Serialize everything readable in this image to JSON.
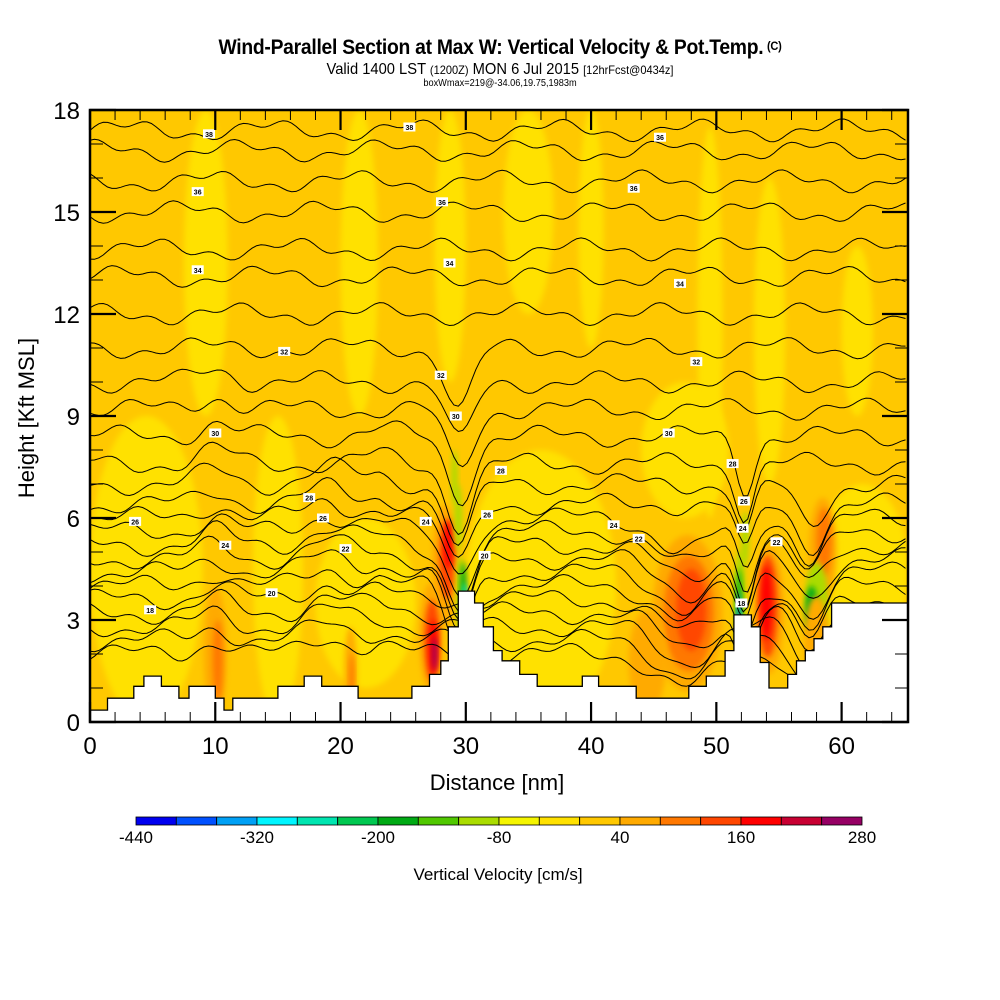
{
  "header": {
    "title": "Wind-Parallel Section at Max W: Vertical Velocity & Pot.Temp.",
    "copyright": "(C)",
    "valid_prefix": "Valid 1400 LST",
    "valid_utc": "(1200Z)",
    "valid_date": "MON 6 Jul 2015",
    "forecast": "[12hrFcst@0434z]",
    "box_info": "boxWmax=219@-34.06,19.75,1983m"
  },
  "chart_data": {
    "type": "heatmap",
    "title": "Wind-Parallel Section at Max W: Vertical Velocity & Pot.Temp.",
    "xlabel": "Distance [nm]",
    "ylabel": "Height [Kft MSL]",
    "xlim": [
      0,
      65.3
    ],
    "ylim": [
      0,
      18
    ],
    "x_ticks": [
      "0",
      "10",
      "20",
      "30",
      "40",
      "50",
      "60"
    ],
    "x_tick_values": [
      0,
      10,
      20,
      30,
      40,
      50,
      60
    ],
    "y_ticks": [
      "0",
      "3",
      "6",
      "9",
      "12",
      "15",
      "18"
    ],
    "y_tick_values": [
      0,
      3,
      6,
      9,
      12,
      15,
      18
    ],
    "colorbar": {
      "label": "Vertical Velocity [cm/s]",
      "levels": [
        -440,
        -400,
        -360,
        -320,
        -280,
        -240,
        -200,
        -160,
        -120,
        -80,
        -40,
        0,
        40,
        80,
        120,
        160,
        200,
        240,
        280
      ],
      "tick_labels": [
        "-440",
        "-320",
        "-200",
        "-80",
        "40",
        "160",
        "280"
      ],
      "tick_values": [
        -440,
        -320,
        -200,
        -80,
        40,
        160,
        280
      ],
      "colors": [
        "#0000f0",
        "#0050ff",
        "#00a0f5",
        "#00f5ff",
        "#00e5b0",
        "#00c850",
        "#00aa14",
        "#50c800",
        "#aadc00",
        "#f5f500",
        "#ffe100",
        "#ffc800",
        "#ffaa00",
        "#ff7800",
        "#ff4600",
        "#ff0000",
        "#c80032",
        "#960064"
      ]
    },
    "contours": {
      "variable": "Potential Temperature",
      "labels": [
        {
          "text": "38",
          "x": 9.5,
          "y": 17.3
        },
        {
          "text": "38",
          "x": 25.5,
          "y": 17.5
        },
        {
          "text": "36",
          "x": 45.5,
          "y": 17.2
        },
        {
          "text": "36",
          "x": 8.6,
          "y": 15.6
        },
        {
          "text": "36",
          "x": 28.1,
          "y": 15.3
        },
        {
          "text": "36",
          "x": 43.4,
          "y": 15.7
        },
        {
          "text": "34",
          "x": 8.6,
          "y": 13.3
        },
        {
          "text": "34",
          "x": 28.7,
          "y": 13.5
        },
        {
          "text": "34",
          "x": 47.1,
          "y": 12.9
        },
        {
          "text": "32",
          "x": 15.5,
          "y": 10.9
        },
        {
          "text": "32",
          "x": 28.0,
          "y": 10.2
        },
        {
          "text": "32",
          "x": 48.4,
          "y": 10.6
        },
        {
          "text": "30",
          "x": 10.0,
          "y": 8.5
        },
        {
          "text": "30",
          "x": 29.2,
          "y": 9.0
        },
        {
          "text": "30",
          "x": 46.2,
          "y": 8.5
        },
        {
          "text": "28",
          "x": 17.5,
          "y": 6.6
        },
        {
          "text": "28",
          "x": 32.8,
          "y": 7.4
        },
        {
          "text": "28",
          "x": 51.3,
          "y": 7.6
        },
        {
          "text": "26",
          "x": 3.6,
          "y": 5.9
        },
        {
          "text": "26",
          "x": 18.6,
          "y": 6.0
        },
        {
          "text": "26",
          "x": 31.7,
          "y": 6.1
        },
        {
          "text": "26",
          "x": 52.2,
          "y": 6.5
        },
        {
          "text": "24",
          "x": 10.8,
          "y": 5.2
        },
        {
          "text": "24",
          "x": 26.8,
          "y": 5.9
        },
        {
          "text": "24",
          "x": 41.8,
          "y": 5.8
        },
        {
          "text": "24",
          "x": 52.1,
          "y": 5.7
        },
        {
          "text": "22",
          "x": 20.4,
          "y": 5.1
        },
        {
          "text": "22",
          "x": 43.8,
          "y": 5.4
        },
        {
          "text": "22",
          "x": 54.8,
          "y": 5.3
        },
        {
          "text": "20",
          "x": 31.5,
          "y": 4.9
        },
        {
          "text": "20",
          "x": 14.5,
          "y": 3.8
        },
        {
          "text": "18",
          "x": 4.8,
          "y": 3.3
        },
        {
          "text": "18",
          "x": 52.0,
          "y": 3.5
        }
      ]
    }
  }
}
